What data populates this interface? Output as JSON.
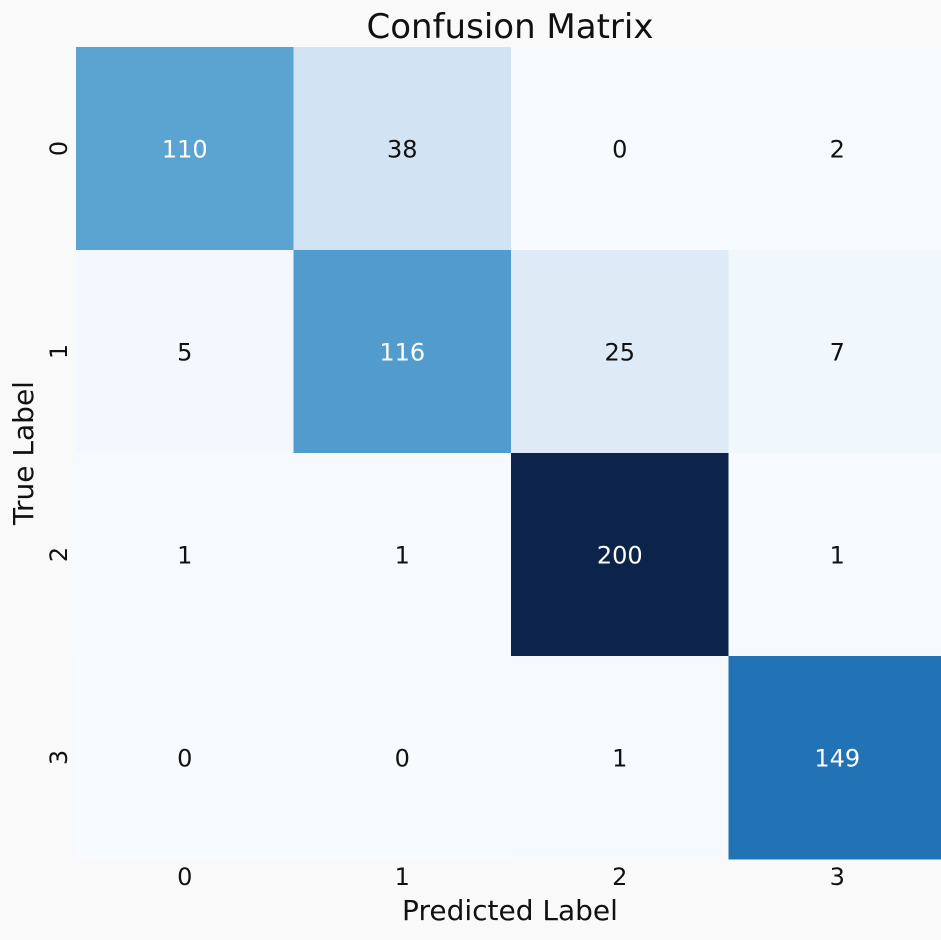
{
  "chart_data": {
    "type": "heatmap",
    "title": "Confusion Matrix",
    "xlabel": "Predicted Label",
    "ylabel": "True Label",
    "x_categories": [
      "0",
      "1",
      "2",
      "3"
    ],
    "y_categories": [
      "0",
      "1",
      "2",
      "3"
    ],
    "values": [
      [
        110,
        38,
        0,
        2
      ],
      [
        5,
        116,
        25,
        7
      ],
      [
        1,
        1,
        200,
        1
      ],
      [
        0,
        0,
        1,
        149
      ]
    ],
    "colormap": "Blues",
    "colorbar": false,
    "annotations": true,
    "vmin": 0,
    "vmax": 200
  }
}
